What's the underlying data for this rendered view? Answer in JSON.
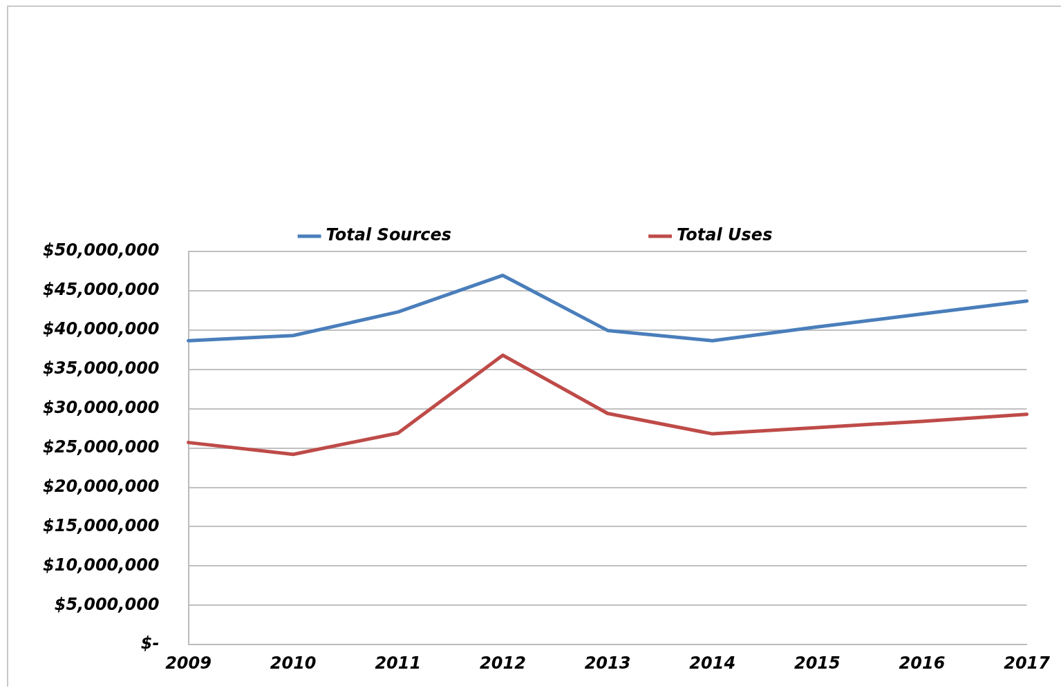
{
  "chart_data": {
    "type": "line",
    "categories": [
      "2009",
      "2010",
      "2011",
      "2012",
      "2013",
      "2014",
      "2015",
      "2016",
      "2017"
    ],
    "series": [
      {
        "name": "Total Sources",
        "color": "#4a7ebb",
        "values": [
          38650000,
          39300000,
          42300000,
          46950000,
          39950000,
          38650000,
          40400000,
          42050000,
          43700000
        ]
      },
      {
        "name": "Total Uses",
        "color": "#be4b48",
        "values": [
          25700000,
          24200000,
          26900000,
          36800000,
          29400000,
          26800000,
          27600000,
          28400000,
          29300000
        ]
      }
    ],
    "ylim": [
      0,
      50000000
    ],
    "yticks": [
      {
        "value": 0,
        "label": "$-"
      },
      {
        "value": 5000000,
        "label": "$5,000,000"
      },
      {
        "value": 10000000,
        "label": "$10,000,000"
      },
      {
        "value": 15000000,
        "label": "$15,000,000"
      },
      {
        "value": 20000000,
        "label": "$20,000,000"
      },
      {
        "value": 25000000,
        "label": "$25,000,000"
      },
      {
        "value": 30000000,
        "label": "$30,000,000"
      },
      {
        "value": 35000000,
        "label": "$35,000,000"
      },
      {
        "value": 40000000,
        "label": "$40,000,000"
      },
      {
        "value": 45000000,
        "label": "$45,000,000"
      },
      {
        "value": 50000000,
        "label": "$50,000,000"
      }
    ],
    "grid": "y",
    "legend": "top",
    "marker": "none",
    "line_style": "solid"
  }
}
